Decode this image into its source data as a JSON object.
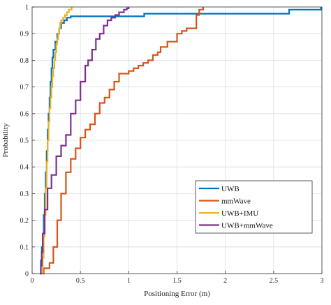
{
  "chart_data": {
    "type": "line",
    "title": "",
    "xlabel": "Positioning Error (m)",
    "ylabel": "Probability",
    "xlim": [
      0,
      3
    ],
    "ylim": [
      0,
      1
    ],
    "xticks": [
      0,
      0.5,
      1,
      1.5,
      2,
      2.5,
      3
    ],
    "xtick_labels": [
      "0",
      "0.5",
      "1",
      "1.5",
      "2",
      "2.5",
      "3"
    ],
    "yticks": [
      0,
      0.1,
      0.2,
      0.3,
      0.4,
      0.5,
      0.6,
      0.7,
      0.8,
      0.9,
      1
    ],
    "ytick_labels": [
      "0",
      "0.1",
      "0.2",
      "0.3",
      "0.4",
      "0.5",
      "0.6",
      "0.7",
      "0.8",
      "0.9",
      "1"
    ],
    "grid": true,
    "legend_position": "lower-right",
    "series": [
      {
        "name": "UWB",
        "color": "#0072BD",
        "x": [
          0.08,
          0.09,
          0.1,
          0.11,
          0.12,
          0.13,
          0.14,
          0.15,
          0.16,
          0.17,
          0.18,
          0.19,
          0.2,
          0.21,
          0.22,
          0.24,
          0.26,
          0.28,
          0.3,
          0.33,
          0.36,
          0.4,
          0.45,
          1.15,
          1.16,
          2.65,
          2.66,
          2.99
        ],
        "y": [
          0.0,
          0.05,
          0.1,
          0.15,
          0.22,
          0.3,
          0.38,
          0.46,
          0.54,
          0.6,
          0.66,
          0.72,
          0.77,
          0.81,
          0.84,
          0.87,
          0.9,
          0.92,
          0.94,
          0.95,
          0.96,
          0.965,
          0.965,
          0.965,
          0.975,
          0.975,
          0.99,
          1.0
        ]
      },
      {
        "name": "mmWave",
        "color": "#D95319",
        "x": [
          0.11,
          0.12,
          0.18,
          0.22,
          0.26,
          0.3,
          0.35,
          0.4,
          0.45,
          0.5,
          0.55,
          0.6,
          0.65,
          0.7,
          0.75,
          0.8,
          0.85,
          0.9,
          0.95,
          1.0,
          1.05,
          1.1,
          1.15,
          1.2,
          1.25,
          1.3,
          1.33,
          1.4,
          1.5,
          1.55,
          1.6,
          1.7,
          1.73,
          1.77
        ],
        "y": [
          0.0,
          0.02,
          0.04,
          0.1,
          0.2,
          0.3,
          0.38,
          0.43,
          0.47,
          0.51,
          0.54,
          0.56,
          0.6,
          0.64,
          0.66,
          0.69,
          0.72,
          0.75,
          0.75,
          0.76,
          0.77,
          0.78,
          0.79,
          0.8,
          0.82,
          0.83,
          0.85,
          0.87,
          0.9,
          0.91,
          0.92,
          0.97,
          0.99,
          1.0
        ]
      },
      {
        "name": "UWB+IMU",
        "color": "#EDB120",
        "x": [
          0.1,
          0.11,
          0.12,
          0.13,
          0.14,
          0.15,
          0.16,
          0.17,
          0.18,
          0.19,
          0.2,
          0.21,
          0.22,
          0.23,
          0.24,
          0.25,
          0.26,
          0.27,
          0.28,
          0.29,
          0.3,
          0.32,
          0.34,
          0.36,
          0.38,
          0.41
        ],
        "y": [
          0.0,
          0.06,
          0.14,
          0.22,
          0.32,
          0.42,
          0.5,
          0.57,
          0.62,
          0.66,
          0.7,
          0.74,
          0.77,
          0.8,
          0.83,
          0.86,
          0.88,
          0.9,
          0.92,
          0.94,
          0.95,
          0.96,
          0.97,
          0.98,
          0.99,
          1.0
        ]
      },
      {
        "name": "UWB+mmWave",
        "color": "#7E2F8E",
        "x": [
          0.08,
          0.09,
          0.1,
          0.11,
          0.13,
          0.16,
          0.2,
          0.25,
          0.3,
          0.35,
          0.4,
          0.45,
          0.5,
          0.55,
          0.58,
          0.62,
          0.66,
          0.7,
          0.74,
          0.78,
          0.82,
          0.86,
          0.9,
          0.95,
          0.98,
          1.0
        ],
        "y": [
          0.0,
          0.03,
          0.08,
          0.15,
          0.24,
          0.32,
          0.37,
          0.44,
          0.48,
          0.52,
          0.6,
          0.65,
          0.72,
          0.78,
          0.8,
          0.84,
          0.88,
          0.9,
          0.93,
          0.95,
          0.96,
          0.97,
          0.98,
          0.99,
          0.995,
          1.0
        ]
      }
    ]
  }
}
